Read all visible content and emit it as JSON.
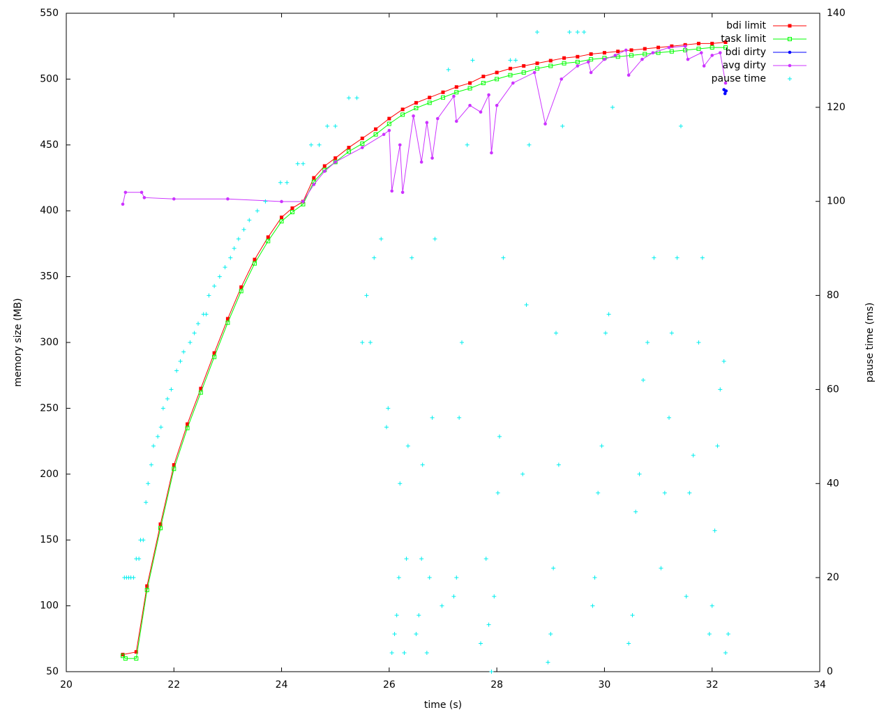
{
  "chart_data": {
    "type": "line",
    "xlabel": "time (s)",
    "ylabel": "memory size (MB)",
    "y2label": "pause time (ms)",
    "xlim": [
      20,
      34
    ],
    "xticks": [
      20,
      22,
      24,
      26,
      28,
      30,
      32,
      34
    ],
    "ylim": [
      50,
      550
    ],
    "yticks": [
      50,
      100,
      150,
      200,
      250,
      300,
      350,
      400,
      450,
      500,
      550
    ],
    "y2lim": [
      0,
      140
    ],
    "y2ticks": [
      0,
      20,
      40,
      60,
      80,
      100,
      120,
      140
    ],
    "legend": "top-right",
    "series": [
      {
        "name": "bdi limit",
        "color": "#ff0000",
        "marker": "square",
        "mode": "linespoints",
        "x": [
          21.05,
          21.3,
          21.5,
          21.75,
          22.0,
          22.25,
          22.5,
          22.75,
          23.0,
          23.25,
          23.5,
          23.75,
          24.0,
          24.2,
          24.4,
          24.6,
          24.8,
          25.0,
          25.25,
          25.5,
          25.75,
          26.0,
          26.25,
          26.5,
          26.75,
          27.0,
          27.25,
          27.5,
          27.75,
          28.0,
          28.25,
          28.5,
          28.75,
          29.0,
          29.25,
          29.5,
          29.75,
          30.0,
          30.25,
          30.5,
          30.75,
          31.0,
          31.25,
          31.5,
          31.75,
          32.0,
          32.25
        ],
        "values": [
          63,
          65,
          115,
          162,
          207,
          238,
          265,
          292,
          318,
          342,
          363,
          380,
          395,
          402,
          407,
          425,
          434,
          440,
          448,
          455,
          462,
          470,
          477,
          482,
          486,
          490,
          494,
          497,
          502,
          505,
          508,
          510,
          512,
          514,
          516,
          517,
          519,
          520,
          521,
          522,
          523,
          524,
          525,
          526,
          527,
          527,
          528
        ]
      },
      {
        "name": "task limit",
        "color": "#00ff00",
        "marker": "open-square",
        "mode": "linespoints",
        "x": [
          21.05,
          21.1,
          21.3,
          21.5,
          21.75,
          22.0,
          22.25,
          22.5,
          22.75,
          23.0,
          23.25,
          23.5,
          23.75,
          24.0,
          24.2,
          24.4,
          24.6,
          24.8,
          25.0,
          25.25,
          25.5,
          25.75,
          26.0,
          26.25,
          26.5,
          26.75,
          27.0,
          27.25,
          27.5,
          27.75,
          28.0,
          28.25,
          28.5,
          28.75,
          29.0,
          29.25,
          29.5,
          29.75,
          30.0,
          30.25,
          30.5,
          30.75,
          31.0,
          31.25,
          31.5,
          31.75,
          32.0,
          32.25
        ],
        "values": [
          62,
          60,
          60,
          112,
          159,
          204,
          235,
          262,
          289,
          315,
          339,
          360,
          377,
          392,
          399,
          405,
          422,
          431,
          437,
          445,
          451,
          458,
          466,
          473,
          478,
          482,
          486,
          490,
          493,
          497,
          500,
          503,
          505,
          508,
          510,
          512,
          513,
          515,
          516,
          517,
          518,
          519,
          520,
          521,
          522,
          523,
          524,
          524
        ]
      },
      {
        "name": "bdi dirty",
        "color": "#0000ff",
        "marker": "circle",
        "mode": "linespoints",
        "x": [
          32.22,
          32.24,
          32.26
        ],
        "values": [
          492,
          489,
          491
        ]
      },
      {
        "name": "avg dirty",
        "color": "#cc33ff",
        "marker": "circle",
        "mode": "linespoints",
        "x": [
          21.05,
          21.1,
          21.4,
          21.45,
          22.0,
          23.0,
          24.0,
          24.4,
          24.6,
          24.8,
          25.0,
          25.5,
          25.9,
          26.0,
          26.05,
          26.2,
          26.25,
          26.45,
          26.6,
          26.7,
          26.8,
          26.9,
          27.2,
          27.25,
          27.5,
          27.7,
          27.85,
          27.9,
          28.0,
          28.3,
          28.7,
          28.9,
          29.2,
          29.5,
          29.7,
          29.75,
          30.0,
          30.2,
          30.4,
          30.45,
          30.7,
          30.9,
          31.2,
          31.5,
          31.55,
          31.8,
          31.85,
          32.0,
          32.15,
          32.25
        ],
        "values": [
          405,
          414,
          414,
          410,
          409,
          409,
          407,
          407,
          420,
          430,
          437,
          448,
          458,
          461,
          415,
          450,
          414,
          472,
          437,
          467,
          440,
          470,
          487,
          468,
          480,
          475,
          488,
          444,
          480,
          497,
          505,
          466,
          500,
          510,
          513,
          505,
          515,
          518,
          522,
          503,
          515,
          520,
          524,
          525,
          515,
          520,
          510,
          518,
          520,
          497
        ]
      },
      {
        "name": "pause time",
        "color": "#00eeee",
        "marker": "plus",
        "mode": "points",
        "axis": "y2",
        "x": [
          21.08,
          21.12,
          21.16,
          21.2,
          21.25,
          21.3,
          21.35,
          21.38,
          21.43,
          21.48,
          21.52,
          21.58,
          21.62,
          21.7,
          21.76,
          21.8,
          21.88,
          21.95,
          22.05,
          22.12,
          22.18,
          22.3,
          22.38,
          22.45,
          22.55,
          22.6,
          22.65,
          22.75,
          22.85,
          22.95,
          23.05,
          23.12,
          23.2,
          23.3,
          23.4,
          23.55,
          23.7,
          23.98,
          24.1,
          24.3,
          24.4,
          24.55,
          24.7,
          24.85,
          25.0,
          25.25,
          25.4,
          25.5,
          25.58,
          25.65,
          25.72,
          25.85,
          25.95,
          25.98,
          26.05,
          26.1,
          26.14,
          26.18,
          26.2,
          26.28,
          26.32,
          26.35,
          26.42,
          26.5,
          26.55,
          26.6,
          26.62,
          26.7,
          26.75,
          26.8,
          26.85,
          26.98,
          27.1,
          27.2,
          27.25,
          27.3,
          27.35,
          27.45,
          27.55,
          27.7,
          27.8,
          27.85,
          27.9,
          27.95,
          28.02,
          28.05,
          28.12,
          28.25,
          28.35,
          28.48,
          28.55,
          28.6,
          28.75,
          28.95,
          29.0,
          29.05,
          29.1,
          29.15,
          29.22,
          29.35,
          29.5,
          29.62,
          29.78,
          29.82,
          29.88,
          29.95,
          30.02,
          30.08,
          30.15,
          30.45,
          30.52,
          30.58,
          30.65,
          30.72,
          30.8,
          30.92,
          31.05,
          31.12,
          31.2,
          31.25,
          31.35,
          31.42,
          31.52,
          31.58,
          31.65,
          31.75,
          31.82,
          31.95,
          32.0,
          32.05,
          32.1,
          32.15,
          32.22,
          32.25,
          32.3
        ],
        "values": [
          20,
          20,
          20,
          20,
          20,
          24,
          24,
          28,
          28,
          36,
          40,
          44,
          48,
          50,
          52,
          56,
          58,
          60,
          64,
          66,
          68,
          70,
          72,
          74,
          76,
          76,
          80,
          82,
          84,
          86,
          88,
          90,
          92,
          94,
          96,
          98,
          100,
          104,
          104,
          108,
          108,
          112,
          112,
          116,
          116,
          122,
          122,
          70,
          80,
          70,
          88,
          92,
          52,
          56,
          4,
          8,
          12,
          20,
          40,
          4,
          24,
          48,
          88,
          8,
          12,
          24,
          44,
          4,
          20,
          54,
          92,
          14,
          128,
          16,
          20,
          54,
          70,
          112,
          130,
          6,
          24,
          10,
          0,
          16,
          38,
          50,
          88,
          130,
          130,
          42,
          78,
          112,
          136,
          2,
          8,
          22,
          72,
          44,
          116,
          136,
          136,
          136,
          14,
          20,
          38,
          48,
          72,
          76,
          120,
          6,
          12,
          34,
          42,
          62,
          70,
          88,
          22,
          38,
          54,
          72,
          88,
          116,
          16,
          38,
          46,
          70,
          88,
          8,
          14,
          30,
          48,
          60,
          66,
          4,
          8
        ]
      }
    ]
  }
}
